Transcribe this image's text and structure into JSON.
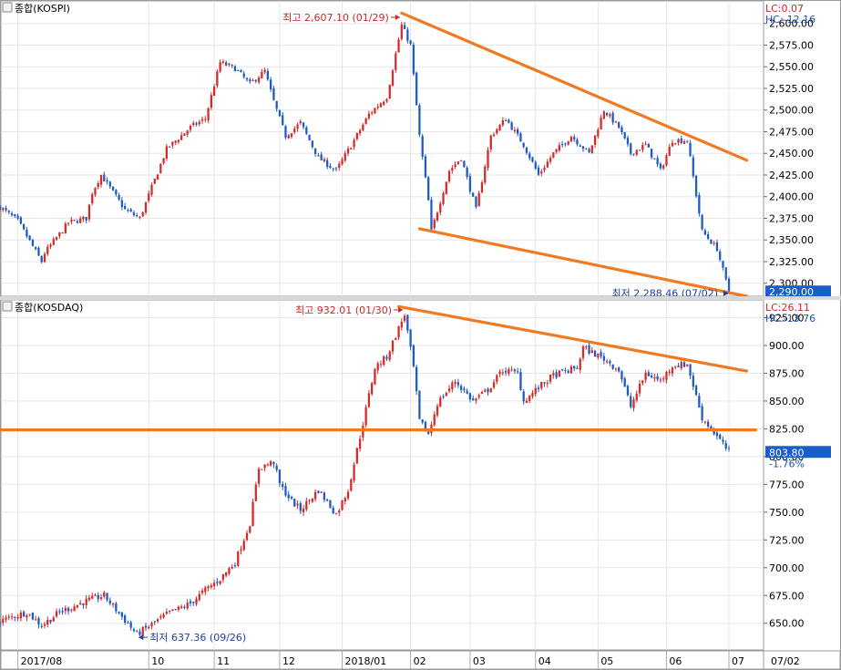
{
  "colors": {
    "up": "#d52b2b",
    "down": "#1f5bc4",
    "trend": "#f07a22",
    "grid": "#e6e6e6",
    "border": "#9a9a9a",
    "last_badge": "#1a5ec8"
  },
  "chart_data": [
    {
      "type": "candlestick",
      "title": "종합(KOSPI)",
      "header": {
        "lc": "LC:0.07",
        "hc": "HC:-12.16"
      },
      "ylim": [
        2285,
        2626
      ],
      "yticks": [
        2300,
        2325,
        2350,
        2375,
        2400,
        2425,
        2450,
        2475,
        2500,
        2525,
        2550,
        2575,
        2600
      ],
      "ytick_labels": [
        "2,300.00",
        "2,325.00",
        "2,350.00",
        "2,375.00",
        "2,400.00",
        "2,425.00",
        "2,450.00",
        "2,475.00",
        "2,500.00",
        "2,525.00",
        "2,550.00",
        "2,575.00",
        "2,600.00"
      ],
      "last_value": "2,290.00",
      "high_annotation": {
        "text": "최고 2,607.10 (01/29)",
        "value": 2607.1,
        "date": "2018-01-29"
      },
      "low_annotation": {
        "text": "최저 2,288.46 (07/02)",
        "value": 2288.46,
        "date": "2018-07-02"
      },
      "trendlines": [
        {
          "from": {
            "date": "2018-01-29",
            "value": 2612
          },
          "to": {
            "date": "2018-07-10",
            "value": 2442
          }
        },
        {
          "from": {
            "date": "2018-02-06",
            "value": 2363
          },
          "to": {
            "date": "2018-07-10",
            "value": 2285
          }
        }
      ],
      "series_waypoints": [
        [
          "2017-07-24",
          2388
        ],
        [
          "2017-08-01",
          2372
        ],
        [
          "2017-08-11",
          2325
        ],
        [
          "2017-08-14",
          2335
        ],
        [
          "2017-08-24",
          2370
        ],
        [
          "2017-09-01",
          2375
        ],
        [
          "2017-09-05",
          2405
        ],
        [
          "2017-09-08",
          2425
        ],
        [
          "2017-09-20",
          2385
        ],
        [
          "2017-09-27",
          2375
        ],
        [
          "2017-10-10",
          2455
        ],
        [
          "2017-10-20",
          2480
        ],
        [
          "2017-10-27",
          2490
        ],
        [
          "2017-11-03",
          2555
        ],
        [
          "2017-11-10",
          2548
        ],
        [
          "2017-11-17",
          2530
        ],
        [
          "2017-11-24",
          2545
        ],
        [
          "2017-11-29",
          2510
        ],
        [
          "2017-12-05",
          2470
        ],
        [
          "2017-12-12",
          2485
        ],
        [
          "2017-12-20",
          2445
        ],
        [
          "2017-12-28",
          2430
        ],
        [
          "2018-01-05",
          2465
        ],
        [
          "2018-01-12",
          2495
        ],
        [
          "2018-01-22",
          2515
        ],
        [
          "2018-01-29",
          2598
        ],
        [
          "2018-02-01",
          2575
        ],
        [
          "2018-02-06",
          2470
        ],
        [
          "2018-02-09",
          2395
        ],
        [
          "2018-02-12",
          2360
        ],
        [
          "2018-02-20",
          2430
        ],
        [
          "2018-02-26",
          2445
        ],
        [
          "2018-03-05",
          2385
        ],
        [
          "2018-03-12",
          2470
        ],
        [
          "2018-03-19",
          2490
        ],
        [
          "2018-03-27",
          2460
        ],
        [
          "2018-04-03",
          2425
        ],
        [
          "2018-04-10",
          2450
        ],
        [
          "2018-04-18",
          2470
        ],
        [
          "2018-04-26",
          2450
        ],
        [
          "2018-05-03",
          2500
        ],
        [
          "2018-05-10",
          2480
        ],
        [
          "2018-05-16",
          2450
        ],
        [
          "2018-05-23",
          2460
        ],
        [
          "2018-05-30",
          2430
        ],
        [
          "2018-06-05",
          2465
        ],
        [
          "2018-06-12",
          2465
        ],
        [
          "2018-06-19",
          2360
        ],
        [
          "2018-06-26",
          2340
        ],
        [
          "2018-07-02",
          2290
        ]
      ]
    },
    {
      "type": "candlestick",
      "title": "종합(KOSDAQ)",
      "header": {
        "lc": "LC:26.11",
        "hc": "HC:-13.76"
      },
      "ylim": [
        626,
        941
      ],
      "yticks": [
        650,
        675,
        700,
        725,
        750,
        775,
        800,
        825,
        850,
        875,
        900,
        925
      ],
      "ytick_labels": [
        "650.00",
        "675.00",
        "700.00",
        "725.00",
        "750.00",
        "775.00",
        "800.00",
        "825.00",
        "850.00",
        "875.00",
        "900.00",
        "925.00"
      ],
      "last_value": "803.80",
      "last_change": "-1.76%",
      "high_annotation": {
        "text": "최고 932.01 (01/30)",
        "value": 932.01,
        "date": "2018-01-30"
      },
      "low_annotation": {
        "text": "최저 637.36 (09/26)",
        "value": 637.36,
        "date": "2017-09-26"
      },
      "trendlines": [
        {
          "from": {
            "date": "2018-01-26",
            "value": 935
          },
          "to": {
            "date": "2018-07-10",
            "value": 877
          }
        },
        {
          "from": {
            "date": "2017-07-24",
            "value": 824
          },
          "to": {
            "date": "2018-07-15",
            "value": 824
          }
        }
      ],
      "series_waypoints": [
        [
          "2017-07-24",
          652
        ],
        [
          "2017-08-04",
          660
        ],
        [
          "2017-08-11",
          648
        ],
        [
          "2017-08-21",
          660
        ],
        [
          "2017-09-01",
          670
        ],
        [
          "2017-09-11",
          675
        ],
        [
          "2017-09-26",
          640
        ],
        [
          "2017-10-10",
          658
        ],
        [
          "2017-10-20",
          668
        ],
        [
          "2017-10-27",
          680
        ],
        [
          "2017-11-03",
          690
        ],
        [
          "2017-11-10",
          705
        ],
        [
          "2017-11-17",
          740
        ],
        [
          "2017-11-22",
          790
        ],
        [
          "2017-11-29",
          795
        ],
        [
          "2017-12-01",
          775
        ],
        [
          "2017-12-07",
          760
        ],
        [
          "2017-12-12",
          752
        ],
        [
          "2017-12-20",
          770
        ],
        [
          "2017-12-28",
          748
        ],
        [
          "2018-01-03",
          770
        ],
        [
          "2018-01-10",
          830
        ],
        [
          "2018-01-16",
          880
        ],
        [
          "2018-01-22",
          890
        ],
        [
          "2018-01-30",
          928
        ],
        [
          "2018-02-02",
          880
        ],
        [
          "2018-02-06",
          832
        ],
        [
          "2018-02-09",
          820
        ],
        [
          "2018-02-14",
          848
        ],
        [
          "2018-02-22",
          868
        ],
        [
          "2018-03-02",
          850
        ],
        [
          "2018-03-09",
          860
        ],
        [
          "2018-03-16",
          878
        ],
        [
          "2018-03-23",
          875
        ],
        [
          "2018-03-27",
          850
        ],
        [
          "2018-04-03",
          862
        ],
        [
          "2018-04-10",
          873
        ],
        [
          "2018-04-20",
          880
        ],
        [
          "2018-04-24",
          898
        ],
        [
          "2018-05-03",
          888
        ],
        [
          "2018-05-10",
          878
        ],
        [
          "2018-05-16",
          845
        ],
        [
          "2018-05-23",
          875
        ],
        [
          "2018-05-30",
          868
        ],
        [
          "2018-06-05",
          882
        ],
        [
          "2018-06-12",
          883
        ],
        [
          "2018-06-19",
          835
        ],
        [
          "2018-06-26",
          818
        ],
        [
          "2018-07-02",
          804
        ]
      ]
    }
  ],
  "x_axis": {
    "ticks": [
      {
        "date": "2017-08-01",
        "label": "2017/08"
      },
      {
        "date": "2017-10-01",
        "label": "10"
      },
      {
        "date": "2017-11-01",
        "label": "11"
      },
      {
        "date": "2017-12-01",
        "label": "12"
      },
      {
        "date": "2018-01-01",
        "label": "2018/01"
      },
      {
        "date": "2018-02-01",
        "label": "02"
      },
      {
        "date": "2018-03-01",
        "label": "03"
      },
      {
        "date": "2018-04-01",
        "label": "04"
      },
      {
        "date": "2018-05-01",
        "label": "05"
      },
      {
        "date": "2018-06-01",
        "label": "06"
      },
      {
        "date": "2018-07-01",
        "label": "07"
      }
    ],
    "right_label": "07/02"
  }
}
